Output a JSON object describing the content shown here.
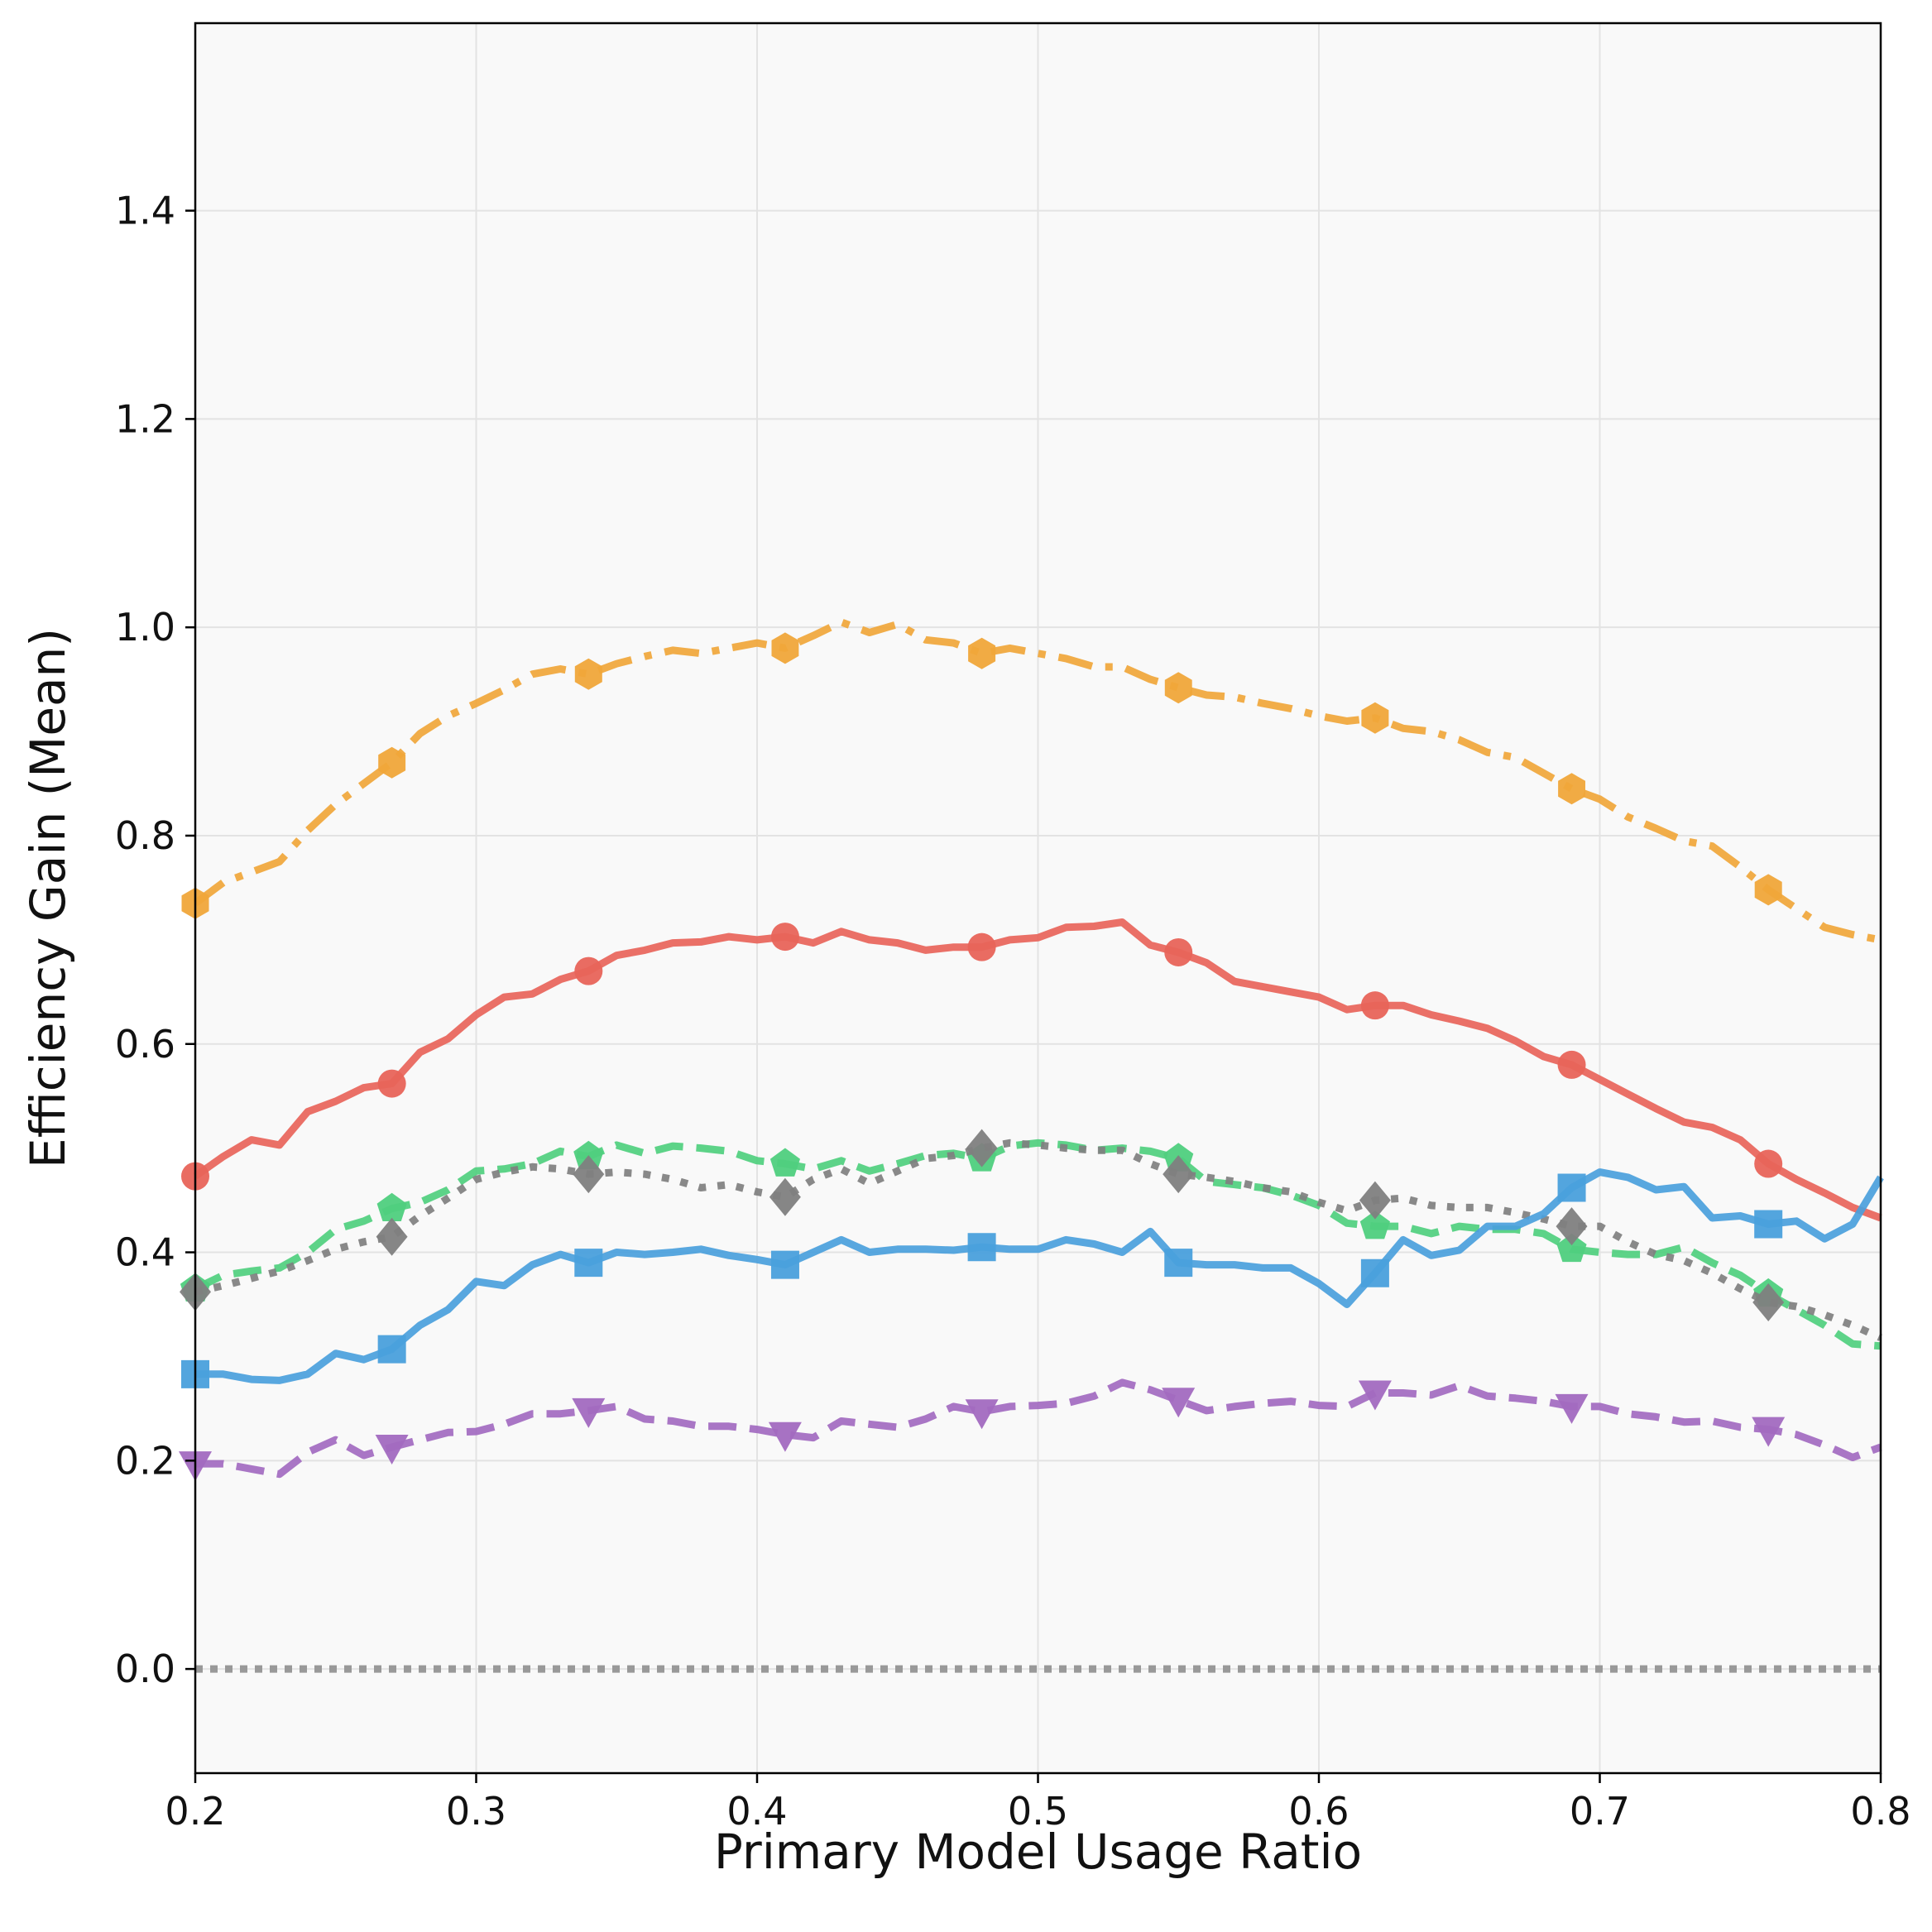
{
  "chart_data": {
    "type": "line",
    "title": "",
    "xlabel": "Primary Model Usage Ratio",
    "ylabel": "Efficiency Gain (Mean)",
    "xlim": [
      0.2,
      0.8
    ],
    "ylim": [
      -0.1,
      1.58
    ],
    "xticks": [
      0.2,
      0.3,
      0.4,
      0.5,
      0.6,
      0.7,
      0.8
    ],
    "xtick_labels": [
      "0.2",
      "0.3",
      "0.4",
      "0.5",
      "0.6",
      "0.7",
      "0.8"
    ],
    "yticks": [
      0.0,
      0.2,
      0.4,
      0.6,
      0.8,
      1.0,
      1.2,
      1.4
    ],
    "ytick_labels": [
      "0.0",
      "0.2",
      "0.4",
      "0.6",
      "0.8",
      "1.0",
      "1.2",
      "1.4"
    ],
    "grid": true,
    "marker_x": [
      0.2,
      0.27,
      0.34,
      0.41,
      0.48,
      0.55,
      0.62,
      0.69,
      0.76
    ],
    "baseline": {
      "y": 0.0,
      "color": "#999999",
      "style": "dotted"
    },
    "series": [
      {
        "name": "series-orange",
        "color": "#f0a63a",
        "style": "dashdot",
        "marker": "hexagon",
        "x": [
          0.2,
          0.21,
          0.22,
          0.23,
          0.24,
          0.25,
          0.26,
          0.27,
          0.28,
          0.29,
          0.3,
          0.31,
          0.32,
          0.33,
          0.34,
          0.35,
          0.36,
          0.37,
          0.38,
          0.39,
          0.4,
          0.41,
          0.42,
          0.43,
          0.44,
          0.45,
          0.46,
          0.47,
          0.48,
          0.49,
          0.5,
          0.51,
          0.52,
          0.53,
          0.54,
          0.55,
          0.56,
          0.57,
          0.58,
          0.59,
          0.6,
          0.61,
          0.62,
          0.63,
          0.64,
          0.65,
          0.66,
          0.67,
          0.68,
          0.69,
          0.7,
          0.71,
          0.72,
          0.73,
          0.74,
          0.75,
          0.76,
          0.77,
          0.78,
          0.79,
          0.8
        ],
        "values": [
          0.735,
          0.755,
          0.765,
          0.775,
          0.805,
          0.83,
          0.85,
          0.87,
          0.898,
          0.915,
          0.927,
          0.94,
          0.955,
          0.96,
          0.955,
          0.965,
          0.972,
          0.978,
          0.975,
          0.98,
          0.985,
          0.98,
          0.992,
          1.005,
          0.995,
          1.003,
          0.988,
          0.985,
          0.975,
          0.98,
          0.975,
          0.97,
          0.962,
          0.962,
          0.95,
          0.942,
          0.935,
          0.933,
          0.927,
          0.922,
          0.915,
          0.91,
          0.913,
          0.903,
          0.9,
          0.892,
          0.88,
          0.875,
          0.86,
          0.845,
          0.835,
          0.818,
          0.807,
          0.795,
          0.79,
          0.77,
          0.748,
          0.73,
          0.712,
          0.705,
          0.7
        ]
      },
      {
        "name": "series-red",
        "color": "#e8645a",
        "style": "solid",
        "marker": "circle",
        "x": [
          0.2,
          0.21,
          0.22,
          0.23,
          0.24,
          0.25,
          0.26,
          0.27,
          0.28,
          0.29,
          0.3,
          0.31,
          0.32,
          0.33,
          0.34,
          0.35,
          0.36,
          0.37,
          0.38,
          0.39,
          0.4,
          0.41,
          0.42,
          0.43,
          0.44,
          0.45,
          0.46,
          0.47,
          0.48,
          0.49,
          0.5,
          0.51,
          0.52,
          0.53,
          0.54,
          0.55,
          0.56,
          0.57,
          0.58,
          0.59,
          0.6,
          0.61,
          0.62,
          0.63,
          0.64,
          0.65,
          0.66,
          0.67,
          0.68,
          0.69,
          0.7,
          0.71,
          0.72,
          0.73,
          0.74,
          0.75,
          0.76,
          0.77,
          0.78,
          0.79,
          0.8
        ],
        "values": [
          0.473,
          0.492,
          0.508,
          0.503,
          0.535,
          0.545,
          0.558,
          0.562,
          0.592,
          0.605,
          0.628,
          0.645,
          0.648,
          0.662,
          0.67,
          0.685,
          0.69,
          0.697,
          0.698,
          0.703,
          0.7,
          0.703,
          0.697,
          0.708,
          0.7,
          0.697,
          0.69,
          0.693,
          0.693,
          0.7,
          0.702,
          0.712,
          0.713,
          0.717,
          0.695,
          0.688,
          0.678,
          0.66,
          0.655,
          0.65,
          0.645,
          0.633,
          0.637,
          0.637,
          0.628,
          0.622,
          0.615,
          0.603,
          0.588,
          0.58,
          0.566,
          0.552,
          0.538,
          0.525,
          0.52,
          0.508,
          0.485,
          0.47,
          0.457,
          0.443,
          0.433
        ]
      },
      {
        "name": "series-green",
        "color": "#4fcf7e",
        "style": "dashed",
        "marker": "pentagon",
        "x": [
          0.2,
          0.21,
          0.22,
          0.23,
          0.24,
          0.25,
          0.26,
          0.27,
          0.28,
          0.29,
          0.3,
          0.31,
          0.32,
          0.33,
          0.34,
          0.35,
          0.36,
          0.37,
          0.38,
          0.39,
          0.4,
          0.41,
          0.42,
          0.43,
          0.44,
          0.45,
          0.46,
          0.47,
          0.48,
          0.49,
          0.5,
          0.51,
          0.52,
          0.53,
          0.54,
          0.55,
          0.56,
          0.57,
          0.58,
          0.59,
          0.6,
          0.61,
          0.62,
          0.63,
          0.64,
          0.65,
          0.66,
          0.67,
          0.68,
          0.69,
          0.7,
          0.71,
          0.72,
          0.73,
          0.74,
          0.75,
          0.76,
          0.77,
          0.78,
          0.79,
          0.8
        ],
        "values": [
          0.365,
          0.378,
          0.382,
          0.385,
          0.4,
          0.422,
          0.43,
          0.442,
          0.448,
          0.46,
          0.478,
          0.48,
          0.485,
          0.497,
          0.492,
          0.503,
          0.495,
          0.502,
          0.5,
          0.497,
          0.488,
          0.485,
          0.48,
          0.488,
          0.478,
          0.485,
          0.493,
          0.495,
          0.49,
          0.502,
          0.505,
          0.503,
          0.498,
          0.5,
          0.497,
          0.49,
          0.468,
          0.465,
          0.462,
          0.455,
          0.445,
          0.428,
          0.425,
          0.425,
          0.418,
          0.425,
          0.422,
          0.422,
          0.418,
          0.403,
          0.4,
          0.398,
          0.398,
          0.405,
          0.39,
          0.378,
          0.36,
          0.345,
          0.33,
          0.312,
          0.31
        ]
      },
      {
        "name": "series-gray",
        "color": "#7f7f7f",
        "style": "dotted",
        "marker": "diamond",
        "x": [
          0.2,
          0.21,
          0.22,
          0.23,
          0.24,
          0.25,
          0.26,
          0.27,
          0.28,
          0.29,
          0.3,
          0.31,
          0.32,
          0.33,
          0.34,
          0.35,
          0.36,
          0.37,
          0.38,
          0.39,
          0.4,
          0.41,
          0.42,
          0.43,
          0.44,
          0.45,
          0.46,
          0.47,
          0.48,
          0.49,
          0.5,
          0.51,
          0.52,
          0.53,
          0.54,
          0.55,
          0.56,
          0.57,
          0.58,
          0.59,
          0.6,
          0.61,
          0.62,
          0.63,
          0.64,
          0.65,
          0.66,
          0.67,
          0.68,
          0.69,
          0.7,
          0.71,
          0.72,
          0.73,
          0.74,
          0.75,
          0.76,
          0.77,
          0.78,
          0.79,
          0.8
        ],
        "values": [
          0.362,
          0.368,
          0.375,
          0.382,
          0.392,
          0.403,
          0.41,
          0.415,
          0.435,
          0.452,
          0.47,
          0.477,
          0.482,
          0.48,
          0.475,
          0.477,
          0.475,
          0.47,
          0.462,
          0.465,
          0.458,
          0.453,
          0.47,
          0.48,
          0.466,
          0.478,
          0.49,
          0.493,
          0.5,
          0.505,
          0.503,
          0.5,
          0.498,
          0.498,
          0.485,
          0.475,
          0.472,
          0.468,
          0.462,
          0.458,
          0.448,
          0.44,
          0.45,
          0.452,
          0.445,
          0.443,
          0.443,
          0.438,
          0.432,
          0.425,
          0.425,
          0.41,
          0.398,
          0.392,
          0.38,
          0.365,
          0.352,
          0.348,
          0.34,
          0.33,
          0.318
        ]
      },
      {
        "name": "series-blue",
        "color": "#4aa0dc",
        "style": "solid",
        "marker": "square",
        "x": [
          0.2,
          0.21,
          0.22,
          0.23,
          0.24,
          0.25,
          0.26,
          0.27,
          0.28,
          0.29,
          0.3,
          0.31,
          0.32,
          0.33,
          0.34,
          0.35,
          0.36,
          0.37,
          0.38,
          0.39,
          0.4,
          0.41,
          0.42,
          0.43,
          0.44,
          0.45,
          0.46,
          0.47,
          0.48,
          0.49,
          0.5,
          0.51,
          0.52,
          0.53,
          0.54,
          0.55,
          0.56,
          0.57,
          0.58,
          0.59,
          0.6,
          0.61,
          0.62,
          0.63,
          0.64,
          0.65,
          0.66,
          0.67,
          0.68,
          0.69,
          0.7,
          0.71,
          0.72,
          0.73,
          0.74,
          0.75,
          0.76,
          0.77,
          0.78,
          0.79,
          0.8
        ],
        "values": [
          0.283,
          0.283,
          0.278,
          0.277,
          0.283,
          0.303,
          0.297,
          0.307,
          0.33,
          0.345,
          0.372,
          0.368,
          0.388,
          0.398,
          0.39,
          0.4,
          0.398,
          0.4,
          0.403,
          0.397,
          0.393,
          0.388,
          0.4,
          0.412,
          0.4,
          0.403,
          0.403,
          0.402,
          0.405,
          0.403,
          0.403,
          0.412,
          0.408,
          0.4,
          0.42,
          0.39,
          0.388,
          0.388,
          0.385,
          0.385,
          0.37,
          0.35,
          0.38,
          0.412,
          0.397,
          0.402,
          0.425,
          0.425,
          0.437,
          0.462,
          0.477,
          0.472,
          0.46,
          0.463,
          0.433,
          0.435,
          0.427,
          0.43,
          0.413,
          0.427,
          0.472
        ]
      },
      {
        "name": "series-purple",
        "color": "#a26ac0",
        "style": "dashed",
        "marker": "triangle-down",
        "x": [
          0.2,
          0.21,
          0.22,
          0.23,
          0.24,
          0.25,
          0.26,
          0.27,
          0.28,
          0.29,
          0.3,
          0.31,
          0.32,
          0.33,
          0.34,
          0.35,
          0.36,
          0.37,
          0.38,
          0.39,
          0.4,
          0.41,
          0.42,
          0.43,
          0.44,
          0.45,
          0.46,
          0.47,
          0.48,
          0.49,
          0.5,
          0.51,
          0.52,
          0.53,
          0.54,
          0.55,
          0.56,
          0.57,
          0.58,
          0.59,
          0.6,
          0.61,
          0.62,
          0.63,
          0.64,
          0.65,
          0.66,
          0.67,
          0.68,
          0.69,
          0.7,
          0.71,
          0.72,
          0.73,
          0.74,
          0.75,
          0.76,
          0.77,
          0.78,
          0.79,
          0.8
        ],
        "values": [
          0.197,
          0.197,
          0.192,
          0.187,
          0.208,
          0.22,
          0.205,
          0.213,
          0.22,
          0.227,
          0.228,
          0.235,
          0.245,
          0.245,
          0.248,
          0.252,
          0.24,
          0.238,
          0.233,
          0.233,
          0.23,
          0.225,
          0.222,
          0.238,
          0.235,
          0.232,
          0.24,
          0.252,
          0.247,
          0.252,
          0.253,
          0.255,
          0.262,
          0.275,
          0.268,
          0.258,
          0.248,
          0.252,
          0.255,
          0.257,
          0.253,
          0.252,
          0.265,
          0.265,
          0.263,
          0.272,
          0.262,
          0.26,
          0.257,
          0.252,
          0.252,
          0.245,
          0.242,
          0.237,
          0.238,
          0.232,
          0.23,
          0.225,
          0.215,
          0.203,
          0.213
        ]
      }
    ]
  }
}
